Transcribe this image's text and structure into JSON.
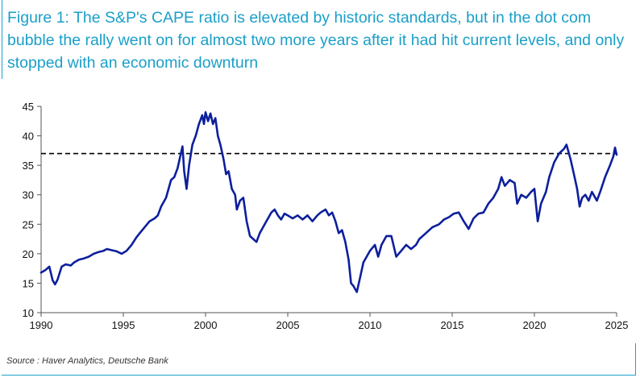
{
  "figure": {
    "title": "Figure 1: The S&P's CAPE ratio is elevated by historic standards, but in the dot com bubble the rally went on for almost two more years after it had hit current levels, and only stopped with an economic downturn",
    "source": "Source : Haver Analytics, Deutsche Bank"
  },
  "colors": {
    "frame": "#1aa3c9",
    "title": "#1a9fc8",
    "series": "#0d1f9c",
    "reference": "#000000"
  },
  "chart_data": {
    "type": "line",
    "title": "",
    "xlabel": "",
    "ylabel": "",
    "xlim": [
      1990,
      2025
    ],
    "ylim": [
      10,
      45
    ],
    "x_ticks": [
      1990,
      1995,
      2000,
      2005,
      2010,
      2015,
      2020,
      2025
    ],
    "y_ticks": [
      10,
      15,
      20,
      25,
      30,
      35,
      40,
      45
    ],
    "grid": false,
    "legend": "none",
    "reference_line": {
      "y": 37,
      "style": "dashed"
    },
    "series": [
      {
        "points": [
          [
            1990.0,
            16.8
          ],
          [
            1990.25,
            17.2
          ],
          [
            1990.5,
            17.8
          ],
          [
            1990.7,
            15.5
          ],
          [
            1990.85,
            14.8
          ],
          [
            1991.0,
            15.6
          ],
          [
            1991.25,
            17.8
          ],
          [
            1991.5,
            18.2
          ],
          [
            1991.8,
            18.0
          ],
          [
            1992.0,
            18.5
          ],
          [
            1992.3,
            19.0
          ],
          [
            1992.6,
            19.2
          ],
          [
            1992.9,
            19.5
          ],
          [
            1993.2,
            20.0
          ],
          [
            1993.5,
            20.3
          ],
          [
            1993.8,
            20.5
          ],
          [
            1994.0,
            20.8
          ],
          [
            1994.3,
            20.6
          ],
          [
            1994.6,
            20.4
          ],
          [
            1994.9,
            20.0
          ],
          [
            1995.2,
            20.5
          ],
          [
            1995.5,
            21.5
          ],
          [
            1995.8,
            22.8
          ],
          [
            1996.0,
            23.5
          ],
          [
            1996.3,
            24.5
          ],
          [
            1996.6,
            25.5
          ],
          [
            1996.9,
            26.0
          ],
          [
            1997.1,
            26.5
          ],
          [
            1997.3,
            28.0
          ],
          [
            1997.6,
            29.5
          ],
          [
            1997.9,
            32.5
          ],
          [
            1998.1,
            33.0
          ],
          [
            1998.3,
            34.5
          ],
          [
            1998.5,
            37.0
          ],
          [
            1998.6,
            38.2
          ],
          [
            1998.7,
            34.0
          ],
          [
            1998.85,
            31.0
          ],
          [
            1999.0,
            35.0
          ],
          [
            1999.2,
            38.5
          ],
          [
            1999.4,
            40.0
          ],
          [
            1999.6,
            42.0
          ],
          [
            1999.8,
            43.5
          ],
          [
            1999.9,
            42.0
          ],
          [
            2000.0,
            44.0
          ],
          [
            2000.15,
            42.5
          ],
          [
            2000.3,
            43.8
          ],
          [
            2000.45,
            42.0
          ],
          [
            2000.6,
            43.0
          ],
          [
            2000.75,
            40.0
          ],
          [
            2000.9,
            38.5
          ],
          [
            2001.1,
            36.0
          ],
          [
            2001.25,
            33.5
          ],
          [
            2001.4,
            34.0
          ],
          [
            2001.6,
            31.0
          ],
          [
            2001.8,
            30.0
          ],
          [
            2001.9,
            27.5
          ],
          [
            2002.1,
            29.0
          ],
          [
            2002.3,
            29.5
          ],
          [
            2002.5,
            25.5
          ],
          [
            2002.7,
            23.0
          ],
          [
            2002.9,
            22.5
          ],
          [
            2003.1,
            22.0
          ],
          [
            2003.3,
            23.5
          ],
          [
            2003.5,
            24.5
          ],
          [
            2003.8,
            26.0
          ],
          [
            2004.0,
            27.0
          ],
          [
            2004.2,
            27.5
          ],
          [
            2004.4,
            26.5
          ],
          [
            2004.6,
            25.8
          ],
          [
            2004.8,
            26.8
          ],
          [
            2005.0,
            26.5
          ],
          [
            2005.3,
            26.0
          ],
          [
            2005.6,
            26.5
          ],
          [
            2005.9,
            25.8
          ],
          [
            2006.2,
            26.5
          ],
          [
            2006.5,
            25.5
          ],
          [
            2006.8,
            26.5
          ],
          [
            2007.0,
            27.0
          ],
          [
            2007.3,
            27.5
          ],
          [
            2007.5,
            26.5
          ],
          [
            2007.7,
            27.0
          ],
          [
            2007.9,
            25.5
          ],
          [
            2008.1,
            23.5
          ],
          [
            2008.3,
            24.0
          ],
          [
            2008.5,
            22.0
          ],
          [
            2008.7,
            19.0
          ],
          [
            2008.85,
            15.0
          ],
          [
            2009.0,
            14.5
          ],
          [
            2009.2,
            13.5
          ],
          [
            2009.4,
            16.0
          ],
          [
            2009.6,
            18.5
          ],
          [
            2009.8,
            19.5
          ],
          [
            2010.0,
            20.5
          ],
          [
            2010.3,
            21.5
          ],
          [
            2010.5,
            19.5
          ],
          [
            2010.7,
            21.5
          ],
          [
            2011.0,
            23.0
          ],
          [
            2011.3,
            23.0
          ],
          [
            2011.6,
            19.5
          ],
          [
            2011.9,
            20.5
          ],
          [
            2012.2,
            21.5
          ],
          [
            2012.5,
            20.8
          ],
          [
            2012.8,
            21.5
          ],
          [
            2013.0,
            22.5
          ],
          [
            2013.4,
            23.5
          ],
          [
            2013.8,
            24.5
          ],
          [
            2014.2,
            25.0
          ],
          [
            2014.5,
            25.8
          ],
          [
            2014.8,
            26.2
          ],
          [
            2015.1,
            26.8
          ],
          [
            2015.4,
            27.0
          ],
          [
            2015.7,
            25.5
          ],
          [
            2016.0,
            24.2
          ],
          [
            2016.3,
            26.0
          ],
          [
            2016.6,
            26.8
          ],
          [
            2016.9,
            27.0
          ],
          [
            2017.2,
            28.5
          ],
          [
            2017.5,
            29.5
          ],
          [
            2017.8,
            31.0
          ],
          [
            2018.0,
            33.0
          ],
          [
            2018.2,
            31.5
          ],
          [
            2018.5,
            32.5
          ],
          [
            2018.8,
            32.0
          ],
          [
            2018.95,
            28.5
          ],
          [
            2019.2,
            30.0
          ],
          [
            2019.5,
            29.5
          ],
          [
            2019.8,
            30.5
          ],
          [
            2020.0,
            31.0
          ],
          [
            2020.2,
            25.5
          ],
          [
            2020.4,
            28.5
          ],
          [
            2020.7,
            30.5
          ],
          [
            2020.9,
            33.0
          ],
          [
            2021.2,
            35.5
          ],
          [
            2021.5,
            37.0
          ],
          [
            2021.8,
            37.8
          ],
          [
            2021.95,
            38.5
          ],
          [
            2022.2,
            36.0
          ],
          [
            2022.4,
            33.5
          ],
          [
            2022.6,
            31.0
          ],
          [
            2022.75,
            28.0
          ],
          [
            2022.9,
            29.5
          ],
          [
            2023.1,
            30.0
          ],
          [
            2023.3,
            29.0
          ],
          [
            2023.5,
            30.5
          ],
          [
            2023.8,
            29.0
          ],
          [
            2024.0,
            30.5
          ],
          [
            2024.3,
            33.0
          ],
          [
            2024.6,
            35.0
          ],
          [
            2024.8,
            36.5
          ],
          [
            2024.9,
            38.0
          ],
          [
            2025.0,
            36.8
          ]
        ]
      }
    ]
  }
}
